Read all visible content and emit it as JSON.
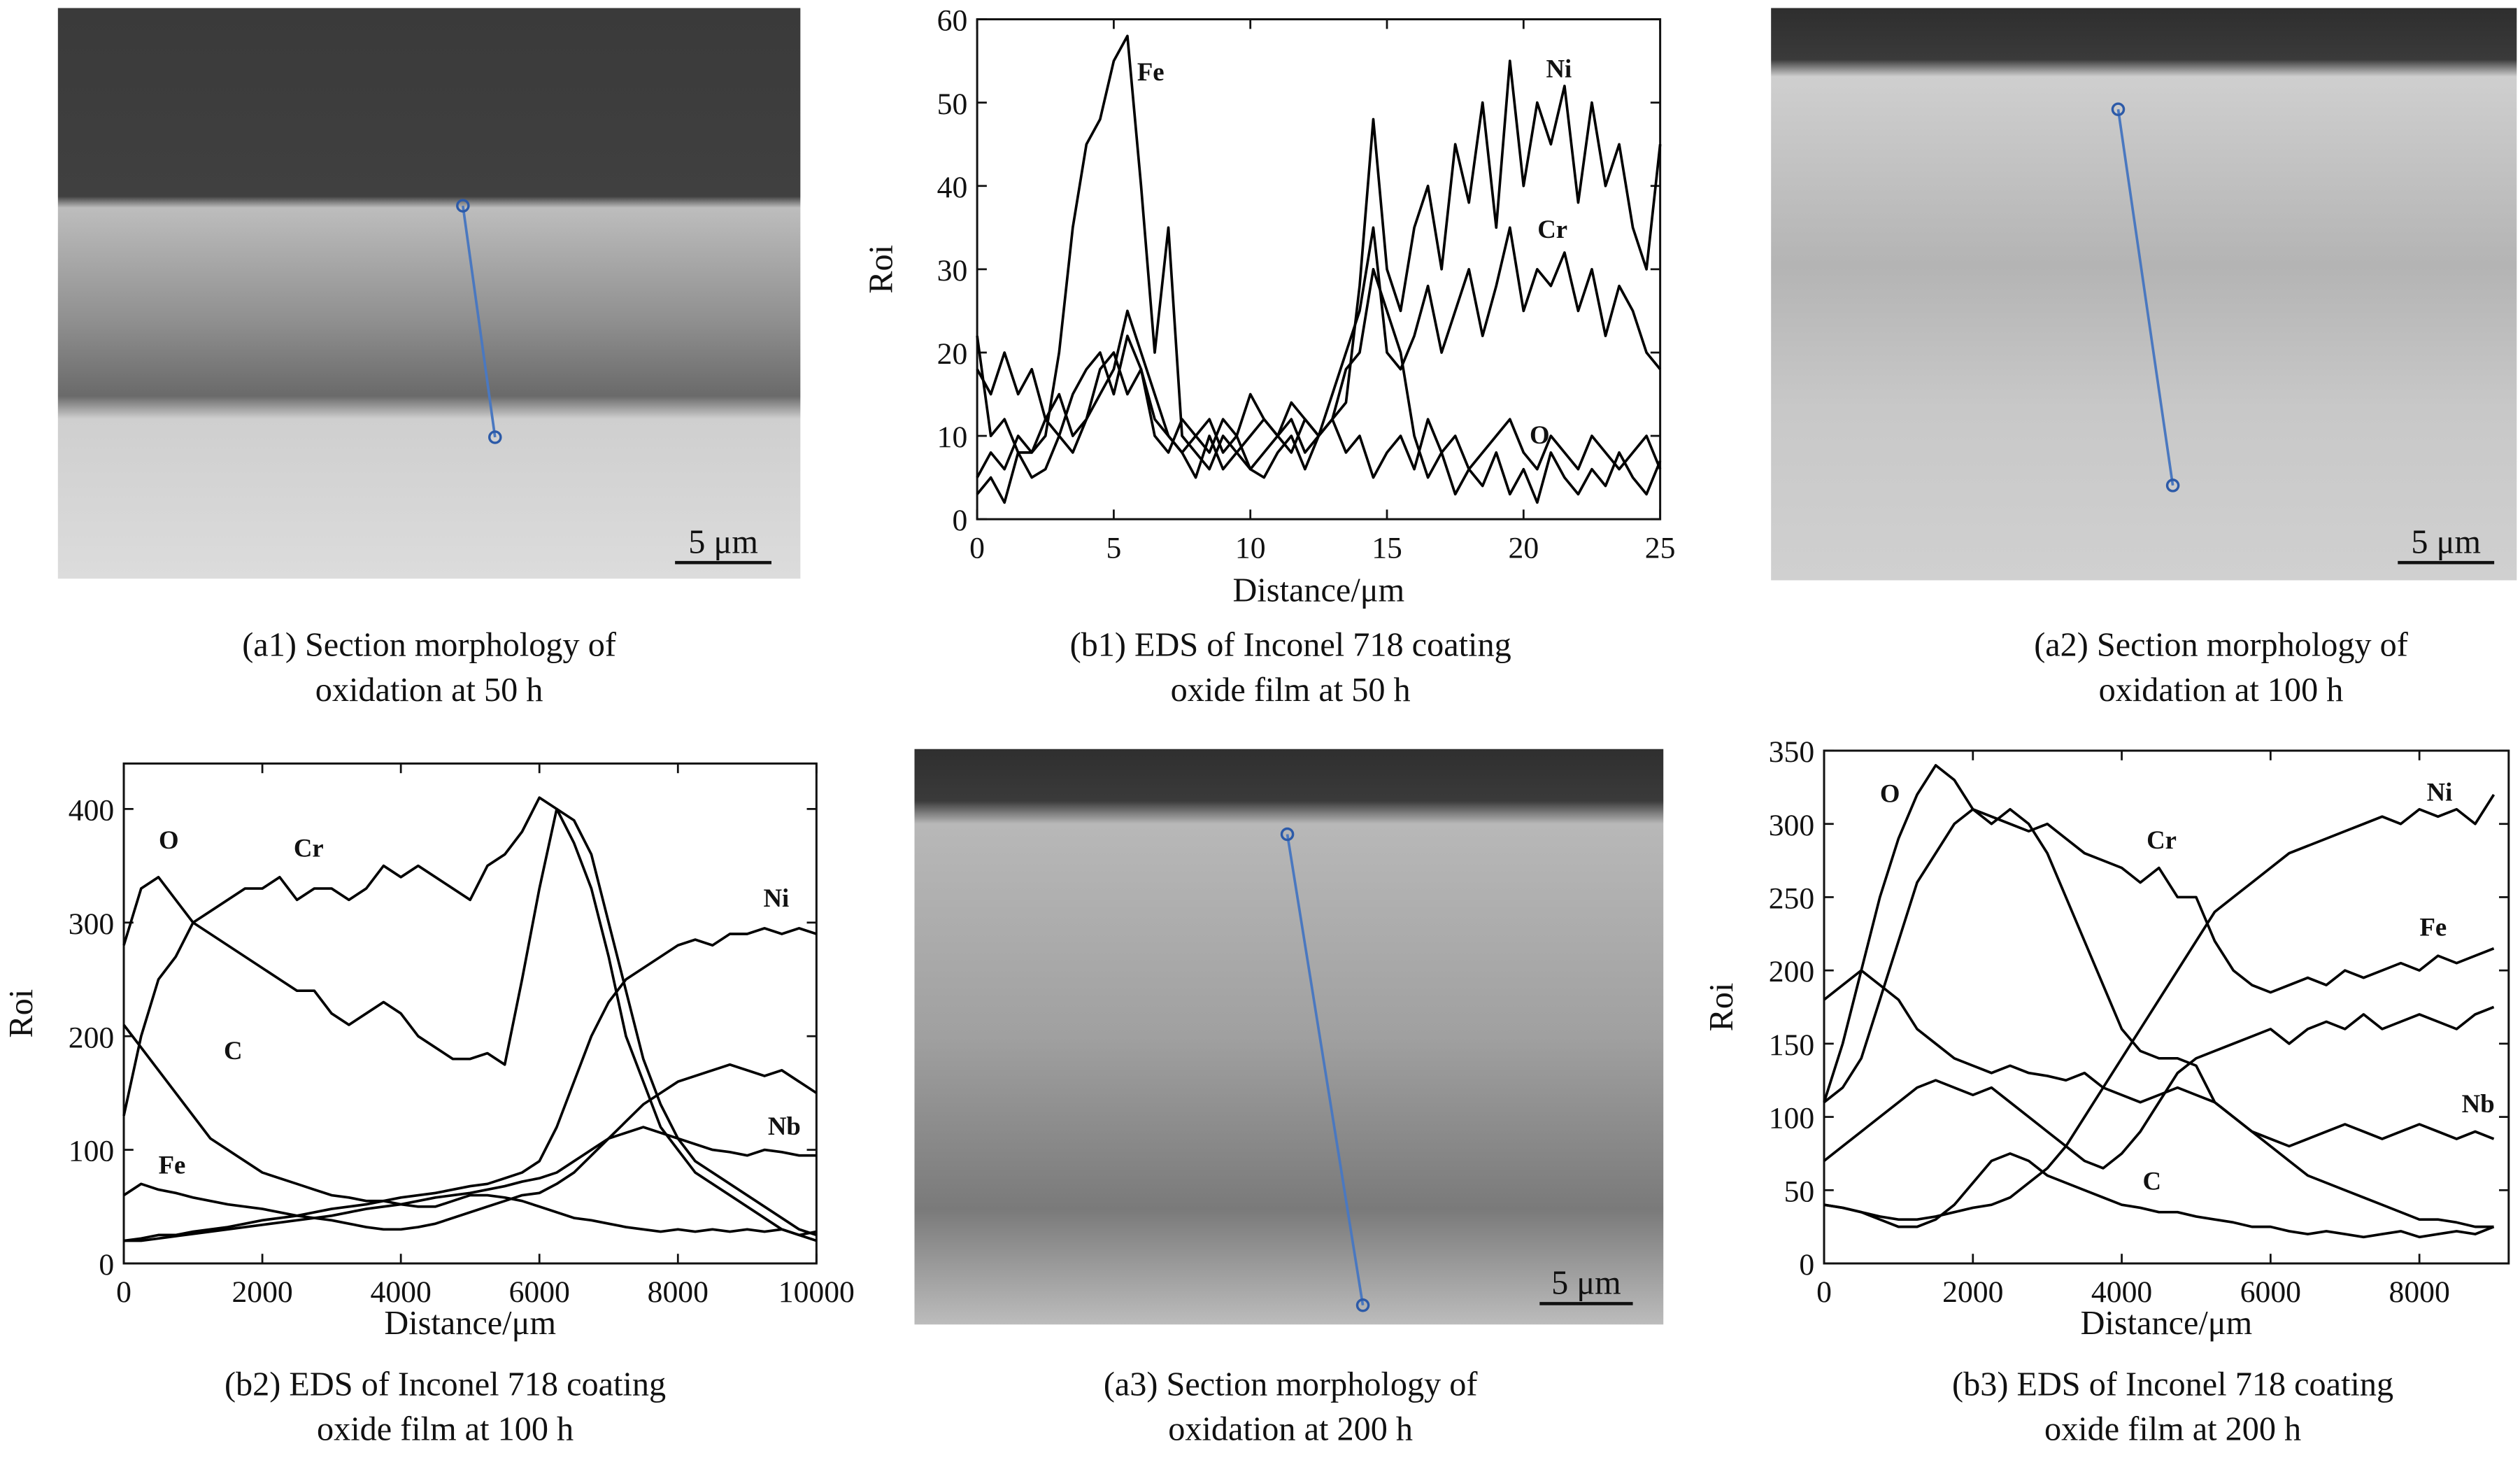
{
  "chart_data": [
    {
      "type": "line",
      "caption": [
        "(b1) EDS of Inconel 718 coating",
        "oxide film at 50 h"
      ],
      "xlabel": "Distance/μm",
      "ylabel": "Roi",
      "xlim": [
        0,
        25
      ],
      "xticks": [
        0,
        5,
        10,
        15,
        20,
        25
      ],
      "ylim": [
        0,
        60
      ],
      "yticks": [
        0,
        10,
        20,
        30,
        40,
        50,
        60
      ],
      "x": [
        0,
        0.5,
        1,
        1.5,
        2,
        2.5,
        3,
        3.5,
        4,
        4.5,
        5,
        5.5,
        6,
        6.5,
        7,
        7.5,
        8,
        8.5,
        9,
        9.5,
        10,
        10.5,
        11,
        11.5,
        12,
        12.5,
        13,
        13.5,
        14,
        14.5,
        15,
        15.5,
        16,
        16.5,
        17,
        17.5,
        18,
        18.5,
        19,
        19.5,
        20,
        20.5,
        21,
        21.5,
        22,
        22.5,
        23,
        23.5,
        24,
        24.5,
        25
      ],
      "series": [
        {
          "name": "Fe",
          "color": "#000000",
          "values": [
            22,
            10,
            12,
            8,
            8,
            10,
            20,
            35,
            45,
            48,
            55,
            58,
            40,
            20,
            35,
            10,
            8,
            6,
            10,
            8,
            6,
            5,
            8,
            10,
            6,
            10,
            12,
            8,
            10,
            5,
            8,
            10,
            6,
            12,
            8,
            10,
            6,
            8,
            10,
            12,
            8,
            6,
            10,
            8,
            6,
            10,
            8,
            6,
            8,
            10,
            6
          ]
        },
        {
          "name": "Ni",
          "color": "#000000",
          "values": [
            5,
            8,
            6,
            10,
            8,
            12,
            10,
            15,
            18,
            20,
            15,
            22,
            18,
            12,
            10,
            8,
            10,
            12,
            8,
            10,
            6,
            8,
            10,
            12,
            8,
            10,
            12,
            14,
            28,
            48,
            30,
            25,
            35,
            40,
            30,
            45,
            38,
            50,
            35,
            55,
            40,
            50,
            45,
            52,
            38,
            50,
            40,
            45,
            35,
            30,
            45
          ]
        },
        {
          "name": "Cr",
          "color": "#000000",
          "values": [
            3,
            5,
            2,
            8,
            5,
            6,
            10,
            8,
            12,
            15,
            18,
            25,
            20,
            15,
            10,
            8,
            5,
            10,
            6,
            8,
            10,
            12,
            10,
            8,
            12,
            10,
            15,
            20,
            25,
            35,
            20,
            18,
            22,
            28,
            20,
            25,
            30,
            22,
            28,
            35,
            25,
            30,
            28,
            32,
            25,
            30,
            22,
            28,
            25,
            20,
            18
          ]
        },
        {
          "name": "O",
          "color": "#000000",
          "values": [
            18,
            15,
            20,
            15,
            18,
            12,
            15,
            10,
            12,
            18,
            20,
            15,
            18,
            10,
            8,
            12,
            10,
            8,
            12,
            10,
            15,
            12,
            10,
            14,
            12,
            10,
            12,
            18,
            20,
            30,
            25,
            20,
            10,
            5,
            8,
            3,
            6,
            4,
            8,
            3,
            6,
            2,
            8,
            5,
            3,
            6,
            4,
            8,
            5,
            3,
            7
          ]
        }
      ]
    },
    {
      "type": "line",
      "caption": [
        "(b2) EDS of Inconel 718 coating",
        "oxide film at 100 h"
      ],
      "xlabel": "Distance/μm",
      "ylabel": "Roi",
      "xlim": [
        0,
        10000
      ],
      "xticks": [
        0,
        2000,
        4000,
        6000,
        8000,
        10000
      ],
      "ylim": [
        0,
        440
      ],
      "yticks": [
        0,
        100,
        200,
        300,
        400
      ],
      "x": [
        0,
        250,
        500,
        750,
        1000,
        1250,
        1500,
        1750,
        2000,
        2250,
        2500,
        2750,
        3000,
        3250,
        3500,
        3750,
        4000,
        4250,
        4500,
        4750,
        5000,
        5250,
        5500,
        5750,
        6000,
        6250,
        6500,
        6750,
        7000,
        7250,
        7500,
        7750,
        8000,
        8250,
        8500,
        8750,
        9000,
        9250,
        9500,
        9750,
        10000
      ],
      "series": [
        {
          "name": "O",
          "color": "#000000",
          "values": [
            280,
            330,
            340,
            320,
            300,
            290,
            280,
            270,
            260,
            250,
            240,
            240,
            220,
            210,
            220,
            230,
            220,
            200,
            190,
            180,
            180,
            185,
            175,
            250,
            330,
            400,
            390,
            360,
            300,
            240,
            180,
            140,
            110,
            90,
            80,
            70,
            60,
            50,
            40,
            30,
            25
          ]
        },
        {
          "name": "Cr",
          "color": "#000000",
          "values": [
            130,
            200,
            250,
            270,
            300,
            310,
            320,
            330,
            330,
            340,
            320,
            330,
            330,
            320,
            330,
            350,
            340,
            350,
            340,
            330,
            320,
            350,
            360,
            380,
            410,
            400,
            370,
            330,
            270,
            200,
            160,
            120,
            100,
            80,
            70,
            60,
            50,
            40,
            30,
            25,
            20
          ]
        },
        {
          "name": "Ni",
          "color": "#000000",
          "values": [
            20,
            22,
            25,
            25,
            28,
            30,
            32,
            35,
            38,
            40,
            42,
            45,
            48,
            50,
            52,
            55,
            58,
            60,
            62,
            65,
            68,
            70,
            75,
            80,
            90,
            120,
            160,
            200,
            230,
            250,
            260,
            270,
            280,
            285,
            280,
            290,
            290,
            295,
            290,
            295,
            290
          ]
        },
        {
          "name": "C",
          "color": "#000000",
          "values": [
            210,
            190,
            170,
            150,
            130,
            110,
            100,
            90,
            80,
            75,
            70,
            65,
            60,
            58,
            55,
            55,
            52,
            50,
            50,
            55,
            60,
            60,
            58,
            55,
            50,
            45,
            40,
            38,
            35,
            32,
            30,
            28,
            30,
            28,
            30,
            28,
            30,
            28,
            30,
            25,
            28
          ]
        },
        {
          "name": "Fe",
          "color": "#000000",
          "values": [
            60,
            70,
            65,
            62,
            58,
            55,
            52,
            50,
            48,
            45,
            42,
            40,
            38,
            35,
            32,
            30,
            30,
            32,
            35,
            40,
            45,
            50,
            55,
            60,
            62,
            70,
            80,
            95,
            110,
            125,
            140,
            150,
            160,
            165,
            170,
            175,
            170,
            165,
            170,
            160,
            150
          ]
        },
        {
          "name": "Nb",
          "color": "#000000",
          "values": [
            20,
            20,
            22,
            24,
            26,
            28,
            30,
            32,
            34,
            36,
            38,
            40,
            42,
            45,
            48,
            50,
            52,
            55,
            58,
            60,
            62,
            65,
            68,
            72,
            75,
            80,
            90,
            100,
            110,
            115,
            120,
            115,
            110,
            105,
            100,
            98,
            95,
            100,
            98,
            95,
            95
          ]
        }
      ]
    },
    {
      "type": "line",
      "caption": [
        "(b3) EDS of Inconel 718 coating",
        "oxide film at 200 h"
      ],
      "xlabel": "Distance/μm",
      "ylabel": "Roi",
      "xlim": [
        0,
        9200
      ],
      "xticks": [
        0,
        2000,
        4000,
        6000,
        8000
      ],
      "ylim": [
        0,
        350
      ],
      "yticks": [
        0,
        50,
        100,
        150,
        200,
        250,
        300,
        350
      ],
      "x": [
        0,
        250,
        500,
        750,
        1000,
        1250,
        1500,
        1750,
        2000,
        2250,
        2500,
        2750,
        3000,
        3250,
        3500,
        3750,
        4000,
        4250,
        4500,
        4750,
        5000,
        5250,
        5500,
        5750,
        6000,
        6250,
        6500,
        6750,
        7000,
        7250,
        7500,
        7750,
        8000,
        8250,
        8500,
        8750,
        9000
      ],
      "series": [
        {
          "name": "O",
          "color": "#000000",
          "values": [
            110,
            150,
            200,
            250,
            290,
            320,
            340,
            330,
            310,
            300,
            310,
            300,
            280,
            250,
            220,
            190,
            160,
            145,
            140,
            140,
            135,
            110,
            100,
            90,
            80,
            70,
            60,
            55,
            50,
            45,
            40,
            35,
            30,
            30,
            28,
            25,
            25
          ]
        },
        {
          "name": "Cr",
          "color": "#000000",
          "values": [
            110,
            120,
            140,
            180,
            220,
            260,
            280,
            300,
            310,
            305,
            300,
            295,
            300,
            290,
            280,
            275,
            270,
            260,
            270,
            250,
            250,
            220,
            200,
            190,
            185,
            190,
            195,
            190,
            200,
            195,
            200,
            205,
            200,
            210,
            205,
            210,
            215
          ]
        },
        {
          "name": "Ni",
          "color": "#000000",
          "values": [
            40,
            38,
            35,
            32,
            30,
            30,
            32,
            35,
            38,
            40,
            45,
            55,
            65,
            80,
            100,
            120,
            140,
            160,
            180,
            200,
            220,
            240,
            250,
            260,
            270,
            280,
            285,
            290,
            295,
            300,
            305,
            300,
            310,
            305,
            310,
            300,
            320
          ]
        },
        {
          "name": "Fe",
          "color": "#000000",
          "values": [
            70,
            80,
            90,
            100,
            110,
            120,
            125,
            120,
            115,
            120,
            110,
            100,
            90,
            80,
            70,
            65,
            75,
            90,
            110,
            130,
            140,
            145,
            150,
            155,
            160,
            150,
            160,
            165,
            160,
            170,
            160,
            165,
            170,
            165,
            160,
            170,
            175
          ]
        },
        {
          "name": "Nb",
          "color": "#000000",
          "values": [
            180,
            190,
            200,
            190,
            180,
            160,
            150,
            140,
            135,
            130,
            135,
            130,
            128,
            125,
            130,
            120,
            115,
            110,
            115,
            120,
            115,
            110,
            100,
            90,
            85,
            80,
            85,
            90,
            95,
            90,
            85,
            90,
            95,
            90,
            85,
            90,
            85
          ]
        },
        {
          "name": "C",
          "color": "#000000",
          "values": [
            40,
            38,
            35,
            30,
            25,
            25,
            30,
            40,
            55,
            70,
            75,
            70,
            60,
            55,
            50,
            45,
            40,
            38,
            35,
            35,
            32,
            30,
            28,
            25,
            25,
            22,
            20,
            22,
            20,
            18,
            20,
            22,
            18,
            20,
            22,
            20,
            25
          ]
        }
      ]
    }
  ],
  "images": [
    {
      "caption": [
        "(a1) Section morphology of",
        "oxidation at 50 h"
      ],
      "scale_label": "5 μm"
    },
    {
      "caption": [
        "(a2) Section morphology of",
        "oxidation at 100 h"
      ],
      "scale_label": "5 μm"
    },
    {
      "caption": [
        "(a3) Section morphology of",
        "oxidation at 200 h"
      ],
      "scale_label": "5 μm"
    }
  ]
}
